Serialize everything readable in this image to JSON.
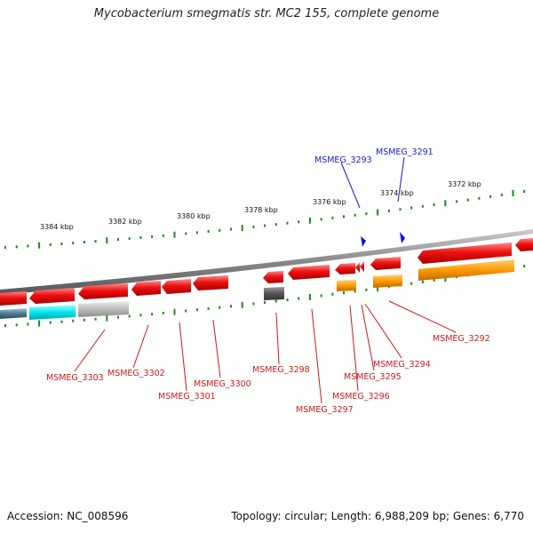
{
  "title": "Mycobacterium smegmatis str. MC2 155, complete genome",
  "footer": {
    "accession": "Accession: NC_008596",
    "summary": "Topology: circular; Length: 6,988,209 bp; Genes: 6,770"
  },
  "scale_labels": [
    "3384 kbp",
    "3382 kbp",
    "3380 kbp",
    "3378 kbp",
    "3376 kbp",
    "3374 kbp",
    "3372 kbp"
  ],
  "genes_top": [
    "MSMEG_3293",
    "MSMEG_3291"
  ],
  "genes_bottom": [
    "MSMEG_3292",
    "MSMEG_3294",
    "MSMEG_3295",
    "MSMEG_3296",
    "MSMEG_3297",
    "MSMEG_3298",
    "MSMEG_3300",
    "MSMEG_3301",
    "MSMEG_3302",
    "MSMEG_3303"
  ],
  "colors": {
    "gene_red": "#ee1111",
    "gene_orange": "#ff9900",
    "gene_cyan": "#00e5ee",
    "gene_gray": "#bbbbbb",
    "gene_dark": "#555555",
    "tick_green": "#1a8a1a",
    "label_blue": "#1a1acc",
    "label_red": "#cc1a1a",
    "backbone": "#888888"
  }
}
